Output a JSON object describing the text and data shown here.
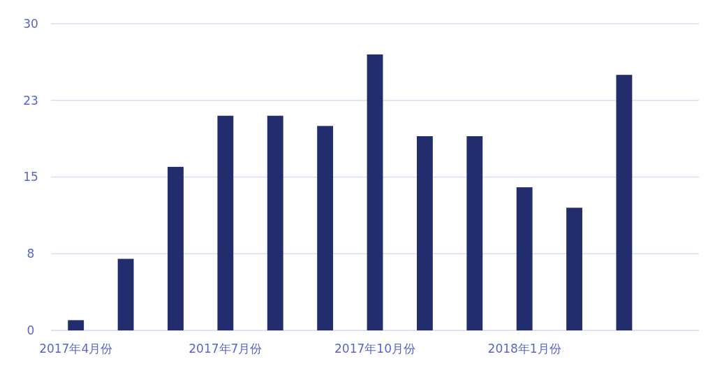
{
  "chart_data": {
    "type": "bar",
    "categories": [
      "2017年4月份",
      null,
      null,
      "2017年7月份",
      null,
      null,
      "2017年10月份",
      null,
      null,
      "2018年1月份",
      null,
      null,
      null
    ],
    "values": [
      1,
      7,
      16,
      21,
      21,
      20,
      27,
      19,
      19,
      14,
      12,
      25,
      null
    ],
    "color": "#222d6e",
    "ylim": [
      0,
      30
    ],
    "yticks": [
      0,
      {
        "value": 7.5,
        "label": "8"
      },
      15,
      {
        "value": 22.5,
        "label": "23"
      },
      30
    ],
    "grid": "y"
  }
}
